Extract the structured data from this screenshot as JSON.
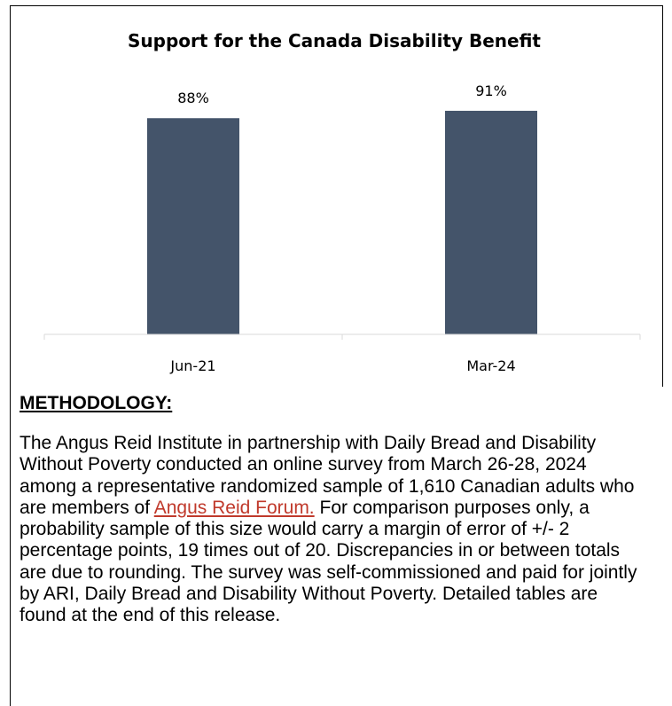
{
  "chart_data": {
    "type": "bar",
    "title": "Support for the Canada Disability Benefit",
    "categories": [
      "Jun-21",
      "Mar-24"
    ],
    "values": [
      88,
      91
    ],
    "data_labels": [
      "88%",
      "91%"
    ],
    "ylim": [
      0,
      100
    ],
    "xlabel": "",
    "ylabel": "",
    "grid": false,
    "legend": "none",
    "bar_color": "#44546a",
    "axis_color": "#d9d9d9"
  },
  "methodology": {
    "heading": "METHODOLOGY:",
    "text_before_link": "The Angus Reid Institute in partnership with Daily Bread and Disability Without Poverty conducted an online survey from March 26-28, 2024 among a representative randomized sample of 1,610 Canadian adults who are members of ",
    "link_text": "Angus Reid Forum.",
    "text_after_link": " For comparison purposes only, a probability sample of this size would carry a margin of error of +/- 2 percentage points, 19 times out of 20. Discrepancies in or between totals are due to rounding. The survey was self-commissioned and paid for jointly by ARI, Daily Bread and Disability Without Poverty. Detailed tables are found at the end of this release.",
    "link_color": "#c0392b"
  }
}
